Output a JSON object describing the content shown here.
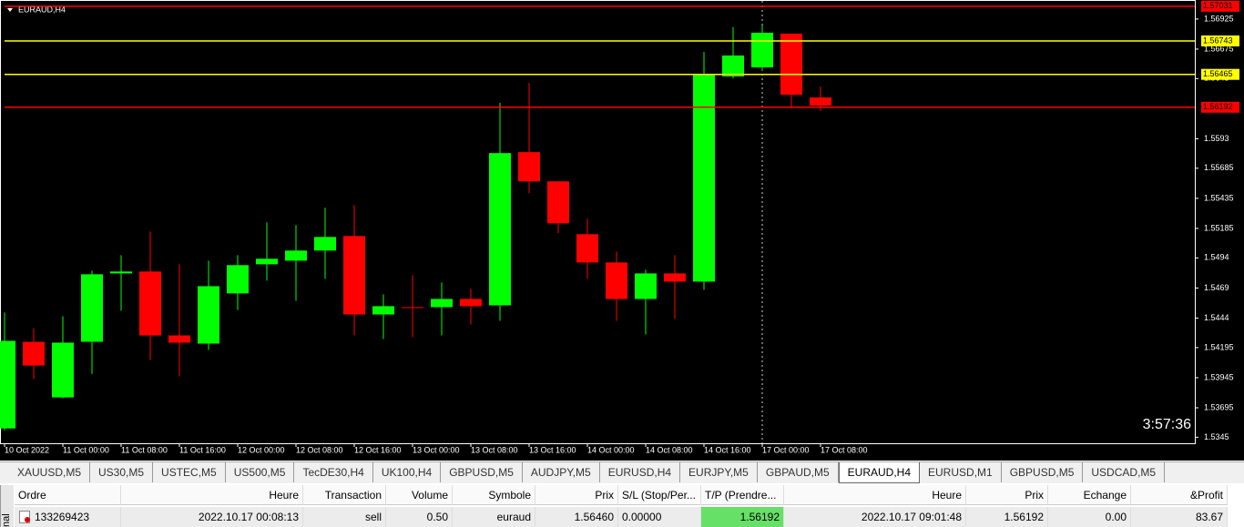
{
  "chart_data": {
    "type": "candlestick",
    "title": "EURAUD,H4",
    "categories": [
      "10 Oct 2022",
      null,
      "11 Oct 00:00",
      null,
      "11 Oct 08:00",
      null,
      "11 Oct 16:00",
      null,
      "12 Oct 00:00",
      null,
      "12 Oct 08:00",
      null,
      "12 Oct 16:00",
      null,
      "13 Oct 00:00",
      null,
      "13 Oct 08:00",
      null,
      "13 Oct 16:00",
      null,
      "14 Oct 00:00",
      null,
      "14 Oct 08:00",
      null,
      "14 Oct 16:00",
      null,
      "17 Oct 00:00",
      null,
      "17 Oct 08:00"
    ],
    "open": [
      1.53523,
      1.54243,
      1.53781,
      1.54243,
      1.54811,
      1.54827,
      1.54296,
      1.54228,
      1.54645,
      1.54887,
      1.54917,
      1.55001,
      1.55122,
      1.5447,
      1.54531,
      1.54531,
      1.54599,
      1.54546,
      1.55819,
      1.55576,
      1.55137,
      1.54902,
      1.54599,
      1.54811,
      1.54743,
      1.56448,
      1.56523,
      1.56804,
      1.56273
    ],
    "high": [
      1.54486,
      1.54357,
      1.54455,
      1.54834,
      1.54963,
      1.5516,
      1.54887,
      1.54917,
      1.54963,
      1.55236,
      1.55213,
      1.55357,
      1.5538,
      1.54637,
      1.54796,
      1.54736,
      1.54683,
      1.56228,
      1.56395,
      1.55576,
      1.55266,
      1.54993,
      1.54842,
      1.54963,
      1.56652,
      1.56857,
      1.56872,
      1.56804,
      1.56364
    ],
    "low": [
      1.53508,
      1.53933,
      1.53773,
      1.53977,
      1.54501,
      1.54092,
      1.53955,
      1.54175,
      1.54508,
      1.54751,
      1.54584,
      1.54766,
      1.54296,
      1.54266,
      1.54281,
      1.54296,
      1.54387,
      1.54417,
      1.55478,
      1.55145,
      1.54766,
      1.54417,
      1.54304,
      1.54433,
      1.54675,
      1.56433,
      1.56493,
      1.5619,
      1.5616
    ],
    "close": [
      1.54251,
      1.54046,
      1.54236,
      1.54804,
      1.54827,
      1.54296,
      1.54236,
      1.54705,
      1.5488,
      1.54933,
      1.55001,
      1.55114,
      1.5447,
      1.54539,
      1.54531,
      1.54599,
      1.54539,
      1.55811,
      1.55576,
      1.55228,
      1.54902,
      1.54599,
      1.54811,
      1.54743,
      1.56463,
      1.56622,
      1.56811,
      1.56296,
      1.56205
    ],
    "up_color": "#00ff00",
    "down_color": "#ff0000",
    "ylim": [
      1.534,
      1.5703
    ],
    "yticks": [
      1.56925,
      1.56675,
      1.5643,
      1.5593,
      1.55685,
      1.55435,
      1.55185,
      1.5494,
      1.5469,
      1.5444,
      1.54195,
      1.53945,
      1.53695,
      1.5345
    ],
    "levels": [
      {
        "value": 1.57031,
        "color": "#ff0000"
      },
      {
        "value": 1.56743,
        "color": "#ffff00"
      },
      {
        "value": 1.56465,
        "color": "#ffff00"
      },
      {
        "value": 1.56192,
        "color": "#ff0000"
      }
    ],
    "countdown": "3:57:36"
  },
  "tabs": [
    "XAUUSD,M5",
    "US30,M5",
    "USTEC,M5",
    "US500,M5",
    "TecDE30,H4",
    "UK100,H4",
    "GBPUSD,M5",
    "AUDJPY,M5",
    "EURUSD,H4",
    "EURJPY,M5",
    "GBPAUD,M5",
    "EURAUD,H4",
    "EURUSD,M1",
    "GBPUSD,M5",
    "USDCAD,M5"
  ],
  "active_tab": 11,
  "side_label": "nal",
  "table": {
    "headers": [
      "Ordre",
      "Heure",
      "Transaction",
      "Volume",
      "Symbole",
      "Prix",
      "S/L (Stop/Per...",
      "T/P (Prendre...",
      "Heure",
      "Prix",
      "Echange",
      "&Profit"
    ],
    "rows": [
      [
        "133269423",
        "2022.10.17 00:08:13",
        "sell",
        "0.50",
        "euraud",
        "1.56460",
        "0.00000",
        "1.56192",
        "2022.10.17 09:01:48",
        "1.56192",
        "0.00",
        "83.67"
      ]
    ]
  }
}
